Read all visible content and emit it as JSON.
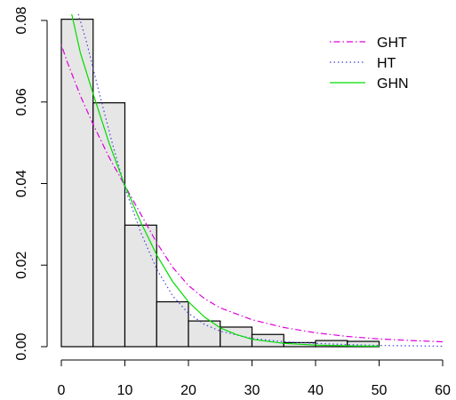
{
  "chart_data": {
    "type": "histogram",
    "title": "",
    "xlabel": "",
    "ylabel": "",
    "xlim": [
      0,
      60
    ],
    "ylim": [
      0,
      0.08
    ],
    "x_ticks": [
      "0",
      "10",
      "20",
      "30",
      "40",
      "50",
      "60"
    ],
    "y_ticks": [
      "0.00",
      "0.02",
      "0.04",
      "0.06",
      "0.08"
    ],
    "grid": false,
    "legend_position": "top-right",
    "bar_color": "#e6e6e6",
    "bins": [
      {
        "x0": 0,
        "x1": 5,
        "density": 0.0803
      },
      {
        "x0": 5,
        "x1": 10,
        "density": 0.0598
      },
      {
        "x0": 10,
        "x1": 15,
        "density": 0.0298
      },
      {
        "x0": 15,
        "x1": 20,
        "density": 0.011
      },
      {
        "x0": 20,
        "x1": 25,
        "density": 0.0063
      },
      {
        "x0": 25,
        "x1": 30,
        "density": 0.0048
      },
      {
        "x0": 30,
        "x1": 35,
        "density": 0.003
      },
      {
        "x0": 35,
        "x1": 40,
        "density": 0.001
      },
      {
        "x0": 40,
        "x1": 45,
        "density": 0.0015
      },
      {
        "x0": 45,
        "x1": 50,
        "density": 0.0013
      }
    ],
    "series": [
      {
        "name": "GHT",
        "color": "#dd00dd",
        "dash": "dotdash",
        "x": [
          0,
          1,
          3,
          5,
          7.5,
          10,
          12.5,
          15,
          17.5,
          20,
          22.5,
          25,
          30,
          35,
          40,
          45,
          50,
          55,
          60
        ],
        "y": [
          0.074,
          0.0695,
          0.0615,
          0.0545,
          0.0465,
          0.0395,
          0.0325,
          0.0255,
          0.0195,
          0.015,
          0.0118,
          0.0095,
          0.0066,
          0.0047,
          0.0034,
          0.0025,
          0.0019,
          0.0015,
          0.0012
        ]
      },
      {
        "name": "HT",
        "color": "#4444dd",
        "dash": "dotted",
        "x": [
          2.5,
          4,
          6,
          8,
          10,
          12.5,
          15,
          17.5,
          20,
          22.5,
          25,
          30,
          35,
          40,
          45,
          50,
          60
        ],
        "y": [
          0.0825,
          0.0745,
          0.062,
          0.05,
          0.039,
          0.028,
          0.019,
          0.0125,
          0.0082,
          0.0055,
          0.0038,
          0.002,
          0.0012,
          0.0008,
          0.0005,
          0.0003,
          0.0001
        ]
      },
      {
        "name": "GHN",
        "color": "#00dd00",
        "dash": "solid",
        "x": [
          1.5,
          3,
          5,
          7.5,
          10,
          12.5,
          15,
          17.5,
          20,
          22.5,
          25,
          27.5,
          30,
          35,
          40,
          45,
          50
        ],
        "y": [
          0.0825,
          0.072,
          0.062,
          0.05,
          0.0395,
          0.0305,
          0.0225,
          0.016,
          0.011,
          0.0073,
          0.0046,
          0.003,
          0.0018,
          0.0008,
          0.0004,
          0.0002,
          0.0001
        ]
      }
    ]
  }
}
